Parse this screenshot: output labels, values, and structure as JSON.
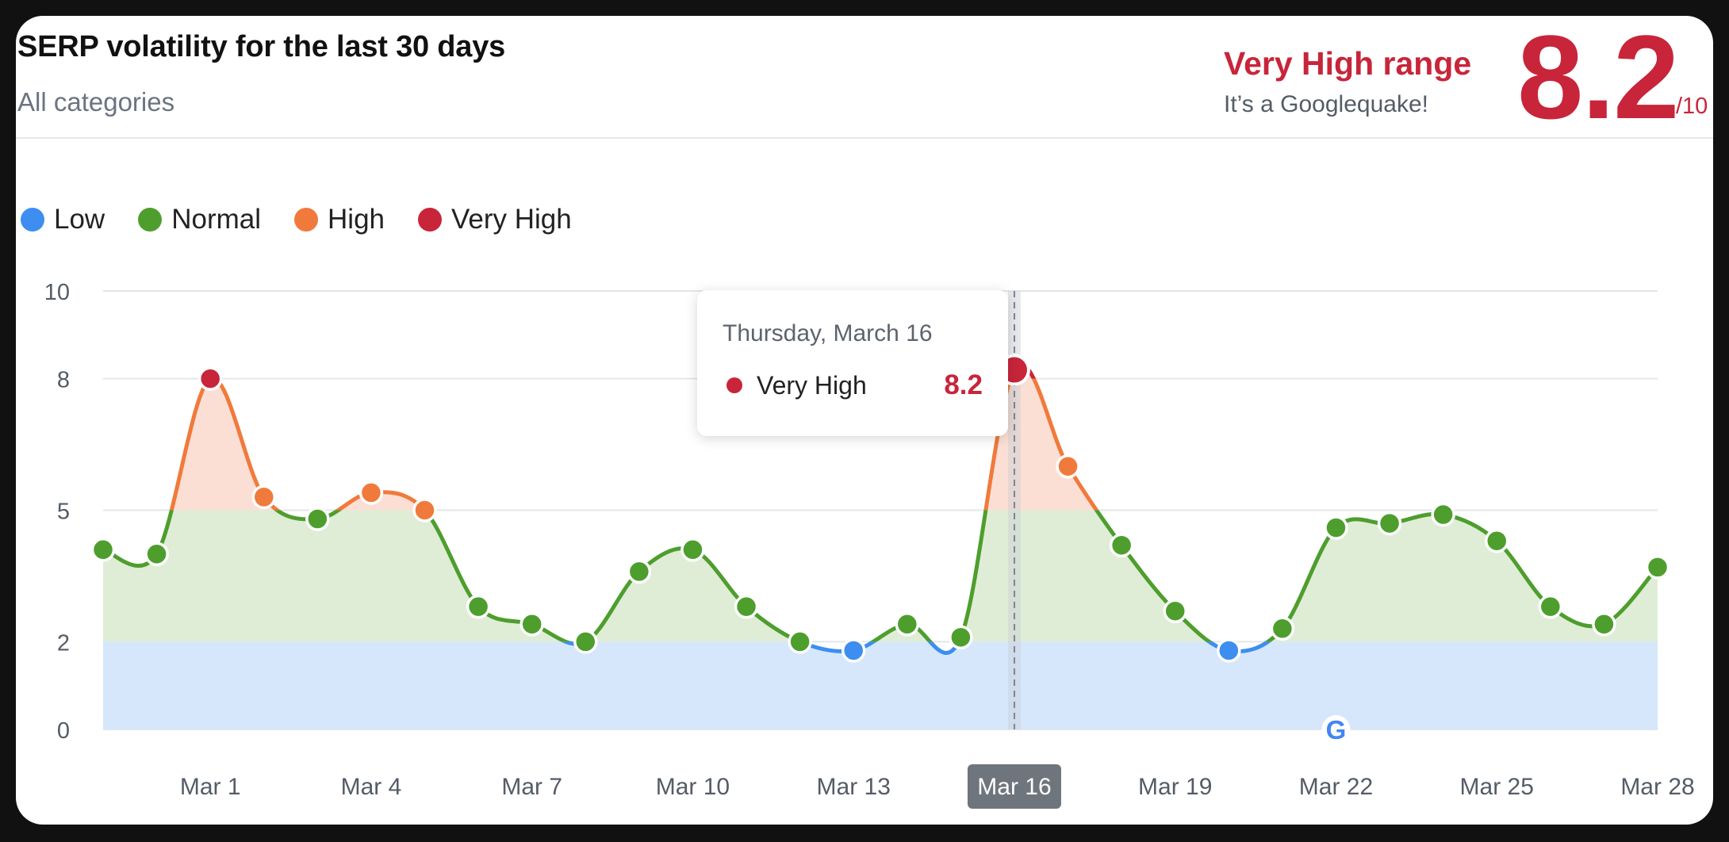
{
  "header": {
    "title": "SERP volatility for the last 30 days",
    "subtitle": "All categories",
    "range_label": "Very High range",
    "range_subtext": "It’s a Googlequake!",
    "score": "8.2",
    "score_max": "/10"
  },
  "legend": [
    {
      "label": "Low",
      "color": "#3d8ef0"
    },
    {
      "label": "Normal",
      "color": "#4e9e2e"
    },
    {
      "label": "High",
      "color": "#f07a3c"
    },
    {
      "label": "Very High",
      "color": "#c8253a"
    }
  ],
  "tooltip": {
    "date": "Thursday, March 16",
    "category": "Very High",
    "value": "8.2",
    "color": "#c8253a"
  },
  "chart_data": {
    "type": "area",
    "title": "SERP volatility for the last 30 days",
    "xlabel": "",
    "ylabel": "",
    "ylim": [
      0,
      10
    ],
    "yticks": [
      0,
      2,
      5,
      8,
      10
    ],
    "x_tick_labels": [
      "Mar 1",
      "Mar 4",
      "Mar 7",
      "Mar 10",
      "Mar 13",
      "Mar 16",
      "Mar 19",
      "Mar 22",
      "Mar 25",
      "Mar 28"
    ],
    "x": [
      "Feb 27",
      "Feb 28",
      "Mar 1",
      "Mar 2",
      "Mar 3",
      "Mar 4",
      "Mar 5",
      "Mar 6",
      "Mar 7",
      "Mar 8",
      "Mar 9",
      "Mar 10",
      "Mar 11",
      "Mar 12",
      "Mar 13",
      "Mar 14",
      "Mar 15",
      "Mar 16",
      "Mar 17",
      "Mar 18",
      "Mar 19",
      "Mar 20",
      "Mar 21",
      "Mar 22",
      "Mar 23",
      "Mar 24",
      "Mar 25",
      "Mar 26",
      "Mar 27",
      "Mar 28"
    ],
    "values": [
      4.1,
      4.0,
      8.0,
      5.3,
      4.8,
      5.4,
      5.0,
      2.8,
      2.4,
      2.0,
      3.6,
      4.1,
      2.8,
      2.0,
      1.8,
      2.4,
      2.1,
      8.2,
      6.0,
      4.2,
      2.7,
      1.8,
      2.3,
      4.6,
      4.7,
      4.9,
      4.3,
      2.8,
      2.4,
      3.7
    ],
    "bands": [
      {
        "name": "Low",
        "range": [
          0,
          2
        ],
        "color": "#3d8ef0",
        "fill": "#d6e7fc"
      },
      {
        "name": "Normal",
        "range": [
          2,
          5
        ],
        "color": "#4e9e2e",
        "fill": "#dfedd6"
      },
      {
        "name": "High",
        "range": [
          5,
          8
        ],
        "color": "#f07a3c",
        "fill": "#fbdfd4"
      },
      {
        "name": "Very High",
        "range": [
          8,
          10
        ],
        "color": "#c8253a",
        "fill": "#f6d2d4"
      }
    ],
    "highlighted": "Mar 16",
    "grid": true,
    "legend_position": "top-left",
    "annotation": {
      "x": "Mar 22",
      "icon": "google-g-icon"
    }
  }
}
